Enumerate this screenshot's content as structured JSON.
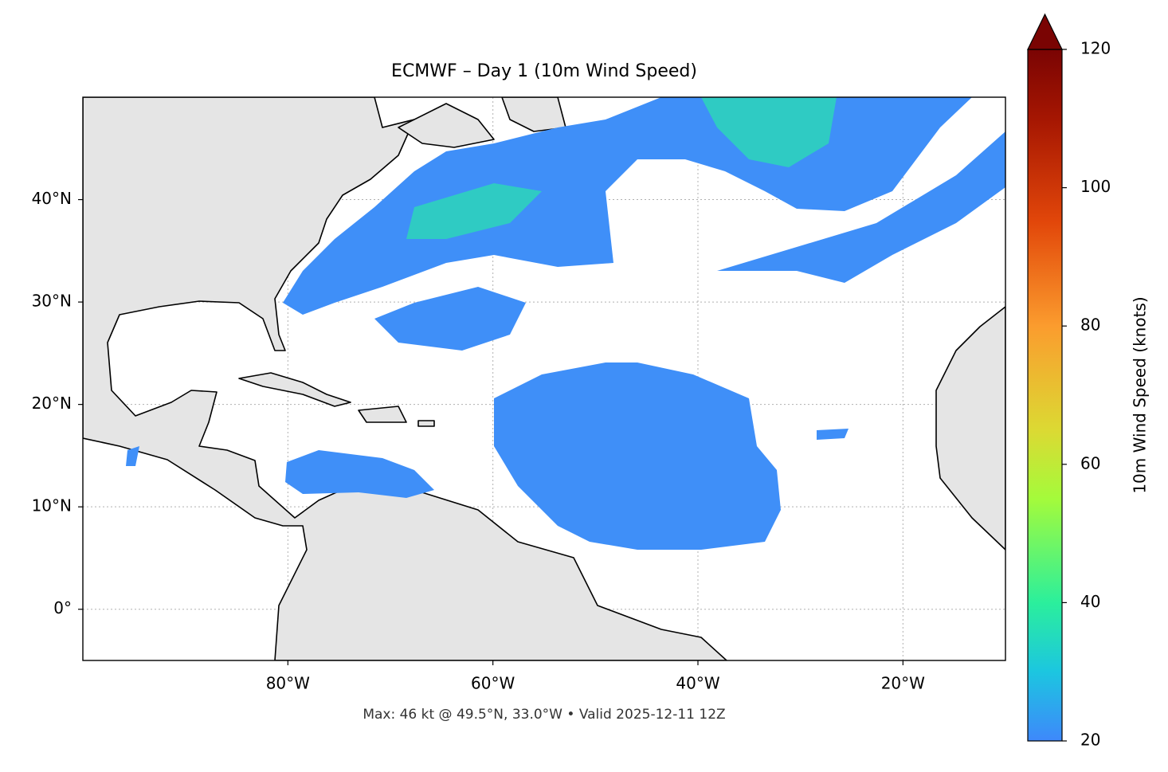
{
  "chart_data": {
    "type": "map",
    "title": "ECMWF – Day 1 (10m Wind Speed)",
    "xlim": [
      -100,
      -10
    ],
    "ylim": [
      -5,
      50
    ],
    "xticks": [
      {
        "value": -80,
        "label": "80°W"
      },
      {
        "value": -60,
        "label": "60°W"
      },
      {
        "value": -40,
        "label": "40°W"
      },
      {
        "value": -20,
        "label": "20°W"
      }
    ],
    "yticks": [
      {
        "value": 0,
        "label": "0°"
      },
      {
        "value": 10,
        "label": "10°N"
      },
      {
        "value": 20,
        "label": "20°N"
      },
      {
        "value": 30,
        "label": "30°N"
      },
      {
        "value": 40,
        "label": "40°N"
      }
    ],
    "grid": true,
    "colorbar": {
      "label": "10m Wind Speed (knots)",
      "lim": [
        20,
        120
      ],
      "ticks": [
        20,
        40,
        60,
        80,
        100,
        120
      ]
    },
    "footnote": "Max: 46 kt @ 49.5°N, 33.0°W • Valid 2025-12-11 12Z"
  }
}
